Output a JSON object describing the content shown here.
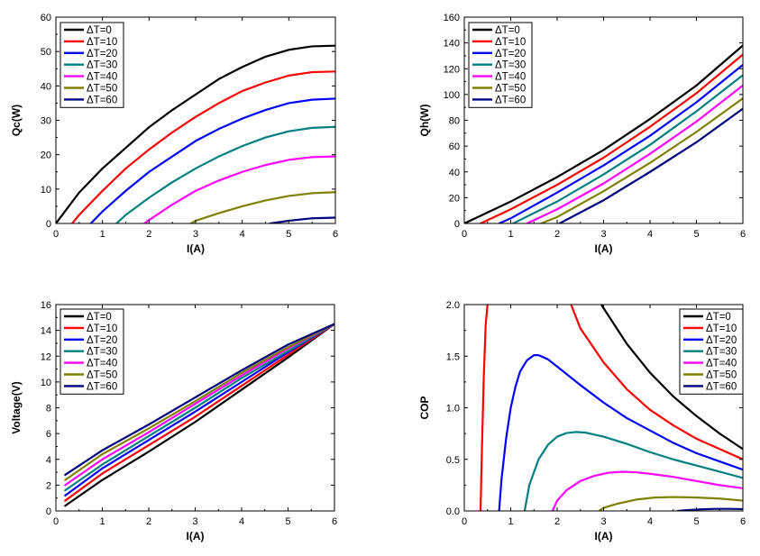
{
  "colors": {
    "ΔT=0": "#000000",
    "ΔT=10": "#ff0000",
    "ΔT=20": "#0000ff",
    "ΔT=30": "#008080",
    "ΔT=40": "#ff00ff",
    "ΔT=50": "#808000",
    "ΔT=60": "#000080"
  },
  "chart_data": [
    {
      "type": "line",
      "xlabel": "I(A)",
      "ylabel": "Qc(W)",
      "xlim": [
        0,
        6
      ],
      "ylim": [
        0,
        60
      ],
      "xticks": [
        0,
        1,
        2,
        3,
        4,
        5,
        6
      ],
      "yticks": [
        0,
        10,
        20,
        30,
        40,
        50,
        60
      ],
      "legend_position": "top-left",
      "series": [
        {
          "name": "ΔT=0",
          "x": [
            0,
            0.5,
            1,
            1.5,
            2,
            2.5,
            3,
            3.5,
            4,
            4.5,
            5,
            5.5,
            6
          ],
          "y": [
            0,
            9,
            16,
            22,
            28,
            33,
            37.5,
            42,
            45.5,
            48.5,
            50.5,
            51.5,
            51.7
          ]
        },
        {
          "name": "ΔT=10",
          "x": [
            0.35,
            0.5,
            1,
            1.5,
            2,
            2.5,
            3,
            3.5,
            4,
            4.5,
            5,
            5.5,
            6
          ],
          "y": [
            0,
            2.5,
            9.5,
            16,
            21.5,
            26.5,
            31,
            35,
            38.5,
            41,
            43,
            44,
            44.2
          ]
        },
        {
          "name": "ΔT=20",
          "x": [
            0.75,
            1,
            1.5,
            2,
            2.5,
            3,
            3.5,
            4,
            4.5,
            5,
            5.5,
            6
          ],
          "y": [
            0,
            3.5,
            9.5,
            15,
            19.5,
            24,
            27.5,
            30.5,
            33,
            35,
            36,
            36.3
          ]
        },
        {
          "name": "ΔT=30",
          "x": [
            1.3,
            1.5,
            2,
            2.5,
            3,
            3.5,
            4,
            4.5,
            5,
            5.5,
            6
          ],
          "y": [
            0,
            2.5,
            7.5,
            12,
            16,
            19.5,
            22.5,
            25,
            26.8,
            27.8,
            28.1
          ]
        },
        {
          "name": "ΔT=40",
          "x": [
            1.9,
            2,
            2.5,
            3,
            3.5,
            4,
            4.5,
            5,
            5.5,
            6
          ],
          "y": [
            0,
            1,
            5.5,
            9.5,
            12.5,
            15,
            17,
            18.5,
            19.3,
            19.5
          ]
        },
        {
          "name": "ΔT=50",
          "x": [
            2.9,
            3,
            3.5,
            4,
            4.5,
            5,
            5.5,
            6
          ],
          "y": [
            0,
            0.8,
            3,
            5,
            6.7,
            8,
            8.8,
            9.1
          ]
        },
        {
          "name": "ΔT=60",
          "x": [
            4.6,
            5,
            5.5,
            6
          ],
          "y": [
            0,
            0.8,
            1.5,
            1.7
          ]
        }
      ]
    },
    {
      "type": "line",
      "xlabel": "I(A)",
      "ylabel": "Qh(W)",
      "xlim": [
        0,
        6
      ],
      "ylim": [
        0,
        160
      ],
      "xticks": [
        0,
        1,
        2,
        3,
        4,
        5,
        6
      ],
      "yticks": [
        0,
        20,
        40,
        60,
        80,
        100,
        120,
        140,
        160
      ],
      "legend_position": "top-left",
      "series": [
        {
          "name": "ΔT=0",
          "x": [
            0,
            1,
            2,
            3,
            4,
            5,
            6
          ],
          "y": [
            0,
            17,
            36,
            57,
            81,
            107,
            138
          ]
        },
        {
          "name": "ΔT=10",
          "x": [
            0.35,
            1,
            2,
            3,
            4,
            5,
            6
          ],
          "y": [
            0,
            11,
            30,
            51,
            75,
            101,
            131
          ]
        },
        {
          "name": "ΔT=20",
          "x": [
            0.75,
            1,
            2,
            3,
            4,
            5,
            6
          ],
          "y": [
            0,
            4,
            24,
            45,
            68,
            94,
            123
          ]
        },
        {
          "name": "ΔT=30",
          "x": [
            1.05,
            2,
            3,
            4,
            5,
            6
          ],
          "y": [
            0,
            17,
            38,
            61,
            87,
            115
          ]
        },
        {
          "name": "ΔT=40",
          "x": [
            1.35,
            2,
            3,
            4,
            5,
            6
          ],
          "y": [
            0,
            11,
            31,
            54,
            79,
            107
          ]
        },
        {
          "name": "ΔT=50",
          "x": [
            1.65,
            2,
            3,
            4,
            5,
            6
          ],
          "y": [
            0,
            5,
            25,
            47,
            71,
            97
          ]
        },
        {
          "name": "ΔT=60",
          "x": [
            2.05,
            3,
            4,
            5,
            6
          ],
          "y": [
            0,
            18,
            40,
            63,
            89
          ]
        }
      ]
    },
    {
      "type": "line",
      "xlabel": "I(A)",
      "ylabel": "Voltage(V)",
      "xlim": [
        0,
        6
      ],
      "ylim": [
        0,
        16
      ],
      "xticks": [
        0,
        1,
        2,
        3,
        4,
        5,
        6
      ],
      "yticks": [
        0,
        2,
        4,
        6,
        8,
        10,
        12,
        14,
        16
      ],
      "legend_position": "top-left",
      "series": [
        {
          "name": "ΔT=0",
          "x": [
            0.2,
            1,
            2,
            3,
            4,
            5,
            6
          ],
          "y": [
            0.4,
            2.4,
            4.6,
            6.9,
            9.4,
            11.9,
            14.5
          ]
        },
        {
          "name": "ΔT=10",
          "x": [
            0.2,
            1,
            2,
            3,
            4,
            5,
            6
          ],
          "y": [
            0.8,
            2.9,
            5.1,
            7.3,
            9.7,
            12.1,
            14.5
          ]
        },
        {
          "name": "ΔT=20",
          "x": [
            0.2,
            1,
            2,
            3,
            4,
            5,
            6
          ],
          "y": [
            1.2,
            3.3,
            5.5,
            7.7,
            10.0,
            12.3,
            14.5
          ]
        },
        {
          "name": "ΔT=30",
          "x": [
            0.2,
            1,
            2,
            3,
            4,
            5,
            6
          ],
          "y": [
            1.6,
            3.6,
            5.8,
            8.0,
            10.3,
            12.4,
            14.5
          ]
        },
        {
          "name": "ΔT=40",
          "x": [
            0.2,
            1,
            2,
            3,
            4,
            5,
            6
          ],
          "y": [
            2.0,
            4.0,
            6.1,
            8.3,
            10.5,
            12.6,
            14.5
          ]
        },
        {
          "name": "ΔT=50",
          "x": [
            0.2,
            1,
            2,
            3,
            4,
            5,
            6
          ],
          "y": [
            2.4,
            4.4,
            6.4,
            8.5,
            10.7,
            12.7,
            14.5
          ]
        },
        {
          "name": "ΔT=60",
          "x": [
            0.2,
            1,
            2,
            3,
            4,
            5,
            6
          ],
          "y": [
            2.8,
            4.7,
            6.7,
            8.8,
            10.9,
            12.9,
            14.5
          ]
        }
      ]
    },
    {
      "type": "line",
      "xlabel": "I(A)",
      "ylabel": "COP",
      "xlim": [
        0,
        6
      ],
      "ylim": [
        0,
        2.0
      ],
      "xticks": [
        0,
        1,
        2,
        3,
        4,
        5,
        6
      ],
      "yticks": [
        0.0,
        0.5,
        1.0,
        1.5,
        2.0
      ],
      "ytick_labels": [
        "0.0",
        "0.5",
        "1.0",
        "1.5",
        "2.0"
      ],
      "legend_position": "top-right",
      "series": [
        {
          "name": "ΔT=0",
          "x": [
            2.95,
            3.5,
            4,
            4.5,
            5,
            5.5,
            6
          ],
          "y": [
            2.0,
            1.62,
            1.34,
            1.11,
            0.92,
            0.75,
            0.6
          ]
        },
        {
          "name": "ΔT=10",
          "x": [
            0.35,
            0.38,
            0.42,
            0.46,
            0.5
          ],
          "y": [
            0.0,
            0.6,
            1.3,
            1.8,
            2.0
          ]
        },
        {
          "name": "ΔT=10",
          "x": [
            2.3,
            2.5,
            3,
            3.5,
            4,
            4.5,
            5,
            5.5,
            6
          ],
          "y": [
            2.0,
            1.77,
            1.44,
            1.18,
            0.98,
            0.83,
            0.7,
            0.6,
            0.5
          ]
        },
        {
          "name": "ΔT=20",
          "x": [
            0.75,
            0.8,
            0.9,
            1.0,
            1.1,
            1.2,
            1.35,
            1.5,
            1.6,
            1.8,
            2,
            2.5,
            3,
            3.5,
            4,
            4.5,
            5,
            5.5,
            6
          ],
          "y": [
            0.0,
            0.3,
            0.7,
            1.0,
            1.2,
            1.35,
            1.46,
            1.51,
            1.51,
            1.47,
            1.4,
            1.22,
            1.05,
            0.9,
            0.78,
            0.66,
            0.56,
            0.48,
            0.4
          ]
        },
        {
          "name": "ΔT=30",
          "x": [
            1.3,
            1.4,
            1.6,
            1.8,
            2,
            2.2,
            2.4,
            2.6,
            3,
            3.5,
            4,
            4.5,
            5,
            5.5,
            6
          ],
          "y": [
            0.0,
            0.25,
            0.5,
            0.64,
            0.72,
            0.755,
            0.765,
            0.76,
            0.72,
            0.65,
            0.57,
            0.5,
            0.44,
            0.38,
            0.32
          ]
        },
        {
          "name": "ΔT=40",
          "x": [
            1.9,
            2.0,
            2.2,
            2.5,
            2.8,
            3.1,
            3.4,
            3.7,
            4,
            4.5,
            5,
            5.5,
            6
          ],
          "y": [
            0.0,
            0.1,
            0.2,
            0.29,
            0.34,
            0.37,
            0.38,
            0.375,
            0.36,
            0.33,
            0.29,
            0.25,
            0.22
          ]
        },
        {
          "name": "ΔT=50",
          "x": [
            2.9,
            3.0,
            3.3,
            3.7,
            4.1,
            4.5,
            5.0,
            5.5,
            6
          ],
          "y": [
            0.0,
            0.03,
            0.07,
            0.11,
            0.13,
            0.135,
            0.13,
            0.12,
            0.1
          ]
        },
        {
          "name": "ΔT=60",
          "x": [
            4.6,
            4.8,
            5.1,
            5.4,
            5.7,
            6
          ],
          "y": [
            0.0,
            0.008,
            0.016,
            0.02,
            0.02,
            0.018
          ]
        }
      ]
    }
  ]
}
